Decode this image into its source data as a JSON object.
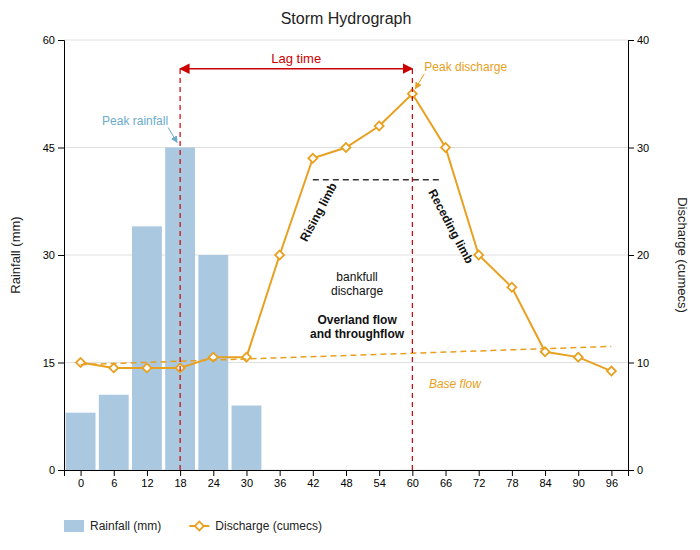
{
  "chart_data": {
    "type": "bar",
    "title": "Storm Hydrograph",
    "ylabel": "Rainfall (mm)",
    "y2label": "Discharge (cumecs)",
    "xlim": [
      -3,
      99
    ],
    "xticks": [
      0,
      6,
      12,
      18,
      24,
      30,
      36,
      42,
      48,
      54,
      60,
      66,
      72,
      78,
      84,
      90,
      96
    ],
    "ylim": [
      0,
      60
    ],
    "yticks": [
      0,
      15,
      30,
      45,
      60
    ],
    "y2lim": [
      0,
      40
    ],
    "y2ticks": [
      0,
      10,
      20,
      30,
      40
    ],
    "grid": true,
    "legend": "bottom",
    "series": [
      {
        "name": "Rainfall (mm)",
        "type": "bar",
        "color": "#aac8e0",
        "x": [
          0,
          6,
          12,
          18,
          24,
          30
        ],
        "values": [
          8,
          10.5,
          34,
          45,
          30,
          9
        ]
      },
      {
        "name": "Discharge (cumecs)",
        "type": "line",
        "axis": "y2",
        "color": "#e8a020",
        "marker": "diamond",
        "x": [
          0,
          6,
          12,
          18,
          24,
          30,
          36,
          42,
          48,
          54,
          60,
          66,
          72,
          78,
          84,
          90,
          96
        ],
        "values": [
          10,
          9.5,
          9.5,
          9.5,
          10.5,
          10.5,
          20,
          29,
          30,
          32,
          35,
          30,
          20,
          17,
          11,
          10.5,
          9.2
        ]
      },
      {
        "type": "line",
        "axis": "y2",
        "color": "#e8a020",
        "line_style": "dashed",
        "x": [
          0,
          96
        ],
        "values": [
          9.8,
          11.5
        ]
      },
      {
        "type": "line",
        "axis": "y2",
        "color": "#333333",
        "line_style": "dashed",
        "x": [
          42,
          65
        ],
        "values": [
          27,
          27
        ]
      }
    ],
    "annotations": [
      {
        "type": "span",
        "text": "Lag time",
        "x": [
          18,
          60
        ],
        "y": 56,
        "color": "#cc0000"
      },
      {
        "type": "arrow",
        "text": "Peak rainfall",
        "x": 18,
        "y": 45,
        "color": "#6aabcc"
      },
      {
        "type": "arrow",
        "text": "Peak discharge",
        "x": 60,
        "y": 35,
        "axis": "y2",
        "color": "#e8a020"
      },
      {
        "type": "text",
        "text": "Rising limb",
        "x": 43,
        "y": 36,
        "color": "#111111"
      },
      {
        "type": "text",
        "text": "Receding limb",
        "x": 67,
        "y": 34,
        "color": "#111111"
      },
      {
        "type": "text",
        "text": "bankfull\ndischarge",
        "x": 50,
        "y": 26,
        "color": "#111111"
      },
      {
        "type": "text",
        "text": "Overland flow\nand throughflow",
        "x": 50,
        "y": 20,
        "color": "#111111"
      },
      {
        "type": "text",
        "text": "Base flow",
        "x": 63,
        "y": 8,
        "axis": "y2",
        "color": "#e8a020"
      }
    ]
  }
}
